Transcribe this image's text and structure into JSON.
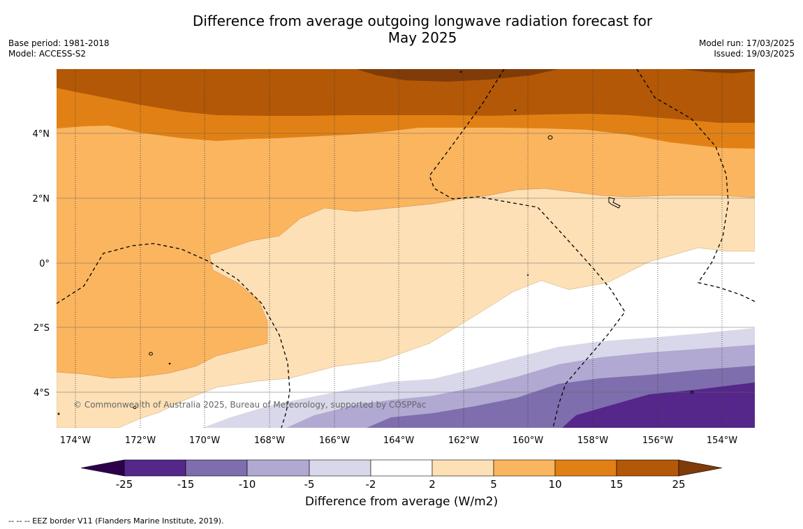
{
  "header": {
    "title_line1": "Difference from average outgoing longwave radiation forecast for",
    "title_line2": "May 2025",
    "base_period": "Base period: 1981-2018",
    "model": "Model: ACCESS-S2",
    "model_run": "Model run: 17/03/2025",
    "issued": "Issued: 19/03/2025"
  },
  "map": {
    "lon_labels": [
      "174°W",
      "172°W",
      "170°W",
      "168°W",
      "166°W",
      "164°W",
      "162°W",
      "160°W",
      "158°W",
      "156°W",
      "154°W"
    ],
    "lat_labels": [
      "4°N",
      "2°N",
      "0°",
      "2°S",
      "4°S"
    ],
    "copyright": "© Commonwealth of Australia 2025, Bureau of Meteorology, supported by COSPPac"
  },
  "colorbar": {
    "ticks": [
      "-25",
      "-15",
      "-10",
      "-5",
      "-2",
      "2",
      "5",
      "10",
      "15",
      "25"
    ],
    "colors": [
      "#55278a",
      "#7e6ead",
      "#b1a9d2",
      "#d9d8ea",
      "#ffffff",
      "#fde0b6",
      "#fbb55f",
      "#e18115",
      "#b35806"
    ],
    "under_color": "#2d004b",
    "over_color": "#7f3b08",
    "label": "Difference from average (W/m2)"
  },
  "footer": {
    "legend": "--  --  -- EEZ border V11 (Flanders Marine Institute, 2019)."
  }
}
